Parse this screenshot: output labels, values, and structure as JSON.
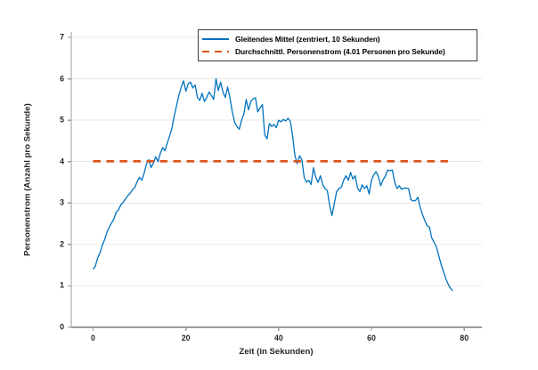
{
  "figure": {
    "background": "#ffffff",
    "axis_color": "#9b9b9b",
    "text_color": "#262626",
    "grid_color": "#e8e8e8"
  },
  "chart_data": {
    "type": "line",
    "title": "",
    "xlabel": "Zeit (in Sekunden)",
    "ylabel": "Personenstrom (Anzahl pro Sekunde)",
    "xlim": [
      -4.7,
      83.8
    ],
    "ylim": [
      0,
      7.13
    ],
    "x_ticks": [
      0,
      20,
      40,
      60,
      80
    ],
    "y_ticks": [
      0,
      1,
      2,
      3,
      4,
      5,
      6,
      7
    ],
    "grid": "horizontal",
    "legend_position": "top-right-inside",
    "series": [
      {
        "name": "Gleitendes Mittel (zentriert, 10 Sekunden)",
        "color": "#0072BD",
        "style": "solid",
        "x_start": 0,
        "x_step": 0.5,
        "values": [
          1.4,
          1.48,
          1.68,
          1.8,
          1.98,
          2.12,
          2.3,
          2.42,
          2.52,
          2.62,
          2.78,
          2.84,
          2.96,
          3.02,
          3.1,
          3.18,
          3.24,
          3.32,
          3.38,
          3.52,
          3.62,
          3.55,
          3.72,
          3.94,
          4.05,
          3.86,
          3.96,
          4.12,
          4.0,
          4.2,
          4.34,
          4.26,
          4.45,
          4.62,
          4.8,
          5.1,
          5.35,
          5.6,
          5.8,
          5.95,
          5.7,
          5.88,
          5.92,
          5.78,
          5.85,
          5.55,
          5.48,
          5.65,
          5.45,
          5.55,
          5.68,
          5.6,
          5.5,
          6.0,
          5.72,
          5.92,
          5.68,
          5.55,
          5.8,
          5.55,
          5.2,
          4.95,
          4.85,
          4.78,
          5.0,
          5.15,
          5.5,
          5.25,
          5.45,
          5.52,
          5.54,
          5.2,
          5.3,
          5.38,
          4.65,
          4.55,
          4.92,
          4.85,
          4.9,
          4.82,
          5.0,
          4.96,
          5.02,
          4.98,
          5.05,
          4.98,
          4.62,
          4.15,
          3.95,
          4.14,
          4.05,
          3.62,
          3.5,
          3.55,
          3.45,
          3.85,
          3.62,
          3.5,
          3.66,
          3.45,
          3.35,
          3.3,
          2.95,
          2.7,
          3.0,
          3.28,
          3.35,
          3.38,
          3.55,
          3.66,
          3.55,
          3.74,
          3.58,
          3.66,
          3.36,
          3.28,
          3.44,
          3.35,
          3.42,
          3.22,
          3.55,
          3.68,
          3.76,
          3.64,
          3.42,
          3.56,
          3.65,
          3.8,
          3.78,
          3.8,
          3.5,
          3.35,
          3.42,
          3.33,
          3.36,
          3.36,
          3.35,
          3.08,
          3.05,
          3.06,
          3.14,
          2.9,
          2.72,
          2.58,
          2.45,
          2.42,
          2.16,
          2.05,
          1.94,
          1.73,
          1.52,
          1.35,
          1.18,
          1.05,
          0.95,
          0.88
        ]
      },
      {
        "name": "Durchschnittl. Personenstrom (4.01 Personen pro Sekunde)",
        "color": "#D95319",
        "style": "dashed",
        "mean_value": 4.01,
        "x": [
          0,
          77.5
        ],
        "y": [
          4.01,
          4.01
        ]
      }
    ]
  }
}
